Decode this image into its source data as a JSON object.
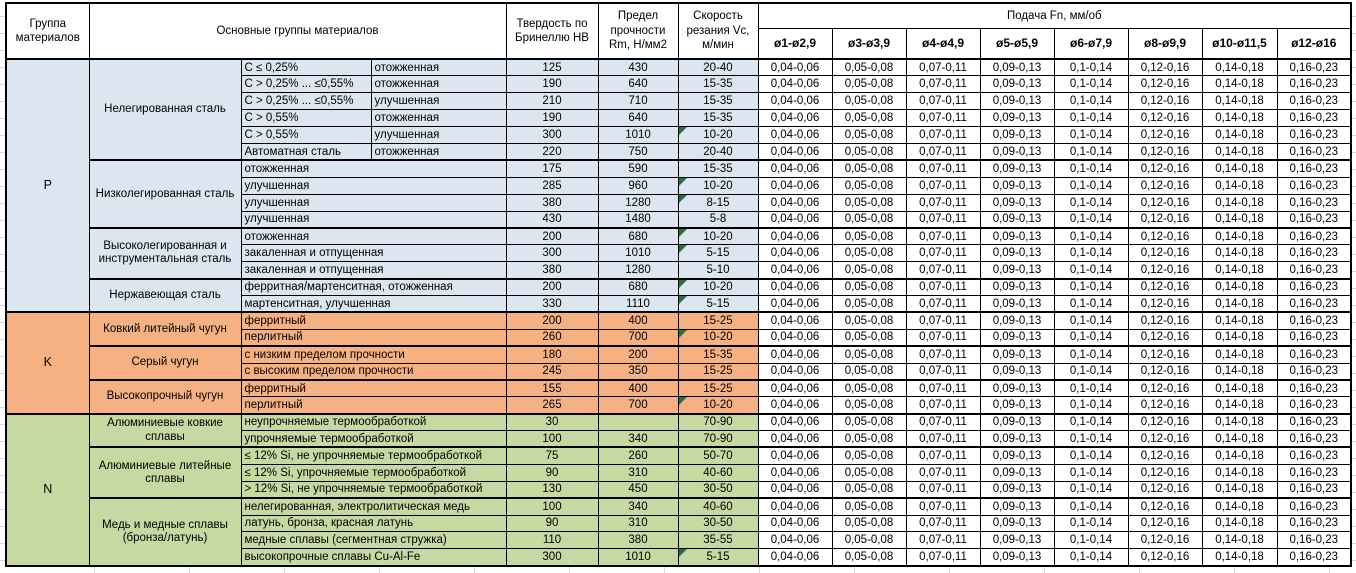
{
  "header": {
    "group_col": "Группа материалов",
    "main_groups_col": "Основные группы материалов",
    "hardness_col": "Твердость по Бринеллю HB",
    "strength_col": "Предел прочности Rm, Н/мм2",
    "speed_col": "Скорость резания Vc, м/мин",
    "feed_group": "Подача Fn, мм/об",
    "feed_cols": [
      "ø1-ø2,9",
      "ø3-ø3,9",
      "ø4-ø4,9",
      "ø5-ø5,9",
      "ø6-ø7,9",
      "ø8-ø9,9",
      "ø10-ø11,5",
      "ø12-ø16"
    ]
  },
  "feed_values": [
    "0,04-0,06",
    "0,05-0,08",
    "0,07-0,11",
    "0,09-0,13",
    "0,1-0,14",
    "0,12-0,16",
    "0,14-0,18",
    "0,16-0,23"
  ],
  "colors": {
    "steel": "#dce6f1",
    "cast_iron": "#f6b183",
    "nonferrous": "#c6d9a2",
    "marker": "#217346"
  },
  "groups": [
    {
      "code": "P",
      "color_key": "steel",
      "blocks": [
        {
          "name": "Нелегированная сталь",
          "rows": [
            {
              "sub": "C ≤ 0,25%",
              "state": "отожженная",
              "hb": "125",
              "rm": "430",
              "vc": "20-40",
              "flag": false
            },
            {
              "sub": "C > 0,25% ... ≤0,55%",
              "state": "отожженная",
              "hb": "190",
              "rm": "640",
              "vc": "15-35",
              "flag": false
            },
            {
              "sub": "C > 0,25% ... ≤0,55%",
              "state": "улучшенная",
              "hb": "210",
              "rm": "710",
              "vc": "15-35",
              "flag": false
            },
            {
              "sub": "C > 0,55%",
              "state": "отожженная",
              "hb": "190",
              "rm": "640",
              "vc": "15-35",
              "flag": false
            },
            {
              "sub": "C > 0,55%",
              "state": "улучшенная",
              "hb": "300",
              "rm": "1010",
              "vc": "10-20",
              "flag": true
            },
            {
              "sub": "Автоматная сталь",
              "state": "отожженная",
              "hb": "220",
              "rm": "750",
              "vc": "20-40",
              "flag": false
            }
          ]
        },
        {
          "name": "Низколегированная сталь",
          "rows": [
            {
              "desc": "отожженная",
              "hb": "175",
              "rm": "590",
              "vc": "15-35",
              "flag": false
            },
            {
              "desc": "улучшенная",
              "hb": "285",
              "rm": "960",
              "vc": "10-20",
              "flag": true
            },
            {
              "desc": "улучшенная",
              "hb": "380",
              "rm": "1280",
              "vc": "8-15",
              "flag": true
            },
            {
              "desc": "улучшенная",
              "hb": "430",
              "rm": "1480",
              "vc": "5-8",
              "flag": false
            }
          ]
        },
        {
          "name": "Высоколегированная и инструментальная сталь",
          "rows": [
            {
              "desc": "отожженная",
              "hb": "200",
              "rm": "680",
              "vc": "10-20",
              "flag": true
            },
            {
              "desc": "закаленная и отпущенная",
              "hb": "300",
              "rm": "1010",
              "vc": "5-15",
              "flag": true
            },
            {
              "desc": "закаленная и отпущенная",
              "hb": "380",
              "rm": "1280",
              "vc": "5-10",
              "flag": false
            }
          ]
        },
        {
          "name": "Нержавеющая сталь",
          "rows": [
            {
              "desc": "ферритная/мартенситная, отожженная",
              "hb": "200",
              "rm": "680",
              "vc": "10-20",
              "flag": true
            },
            {
              "desc": "мартенситная, улучшенная",
              "hb": "330",
              "rm": "1110",
              "vc": "5-15",
              "flag": true
            }
          ]
        }
      ]
    },
    {
      "code": "K",
      "color_key": "cast_iron",
      "blocks": [
        {
          "name": "Ковкий литейный чугун",
          "rows": [
            {
              "desc": "ферритный",
              "hb": "200",
              "rm": "400",
              "vc": "15-25",
              "flag": false
            },
            {
              "desc": "перлитный",
              "hb": "260",
              "rm": "700",
              "vc": "10-20",
              "flag": true
            }
          ]
        },
        {
          "name": "Серый чугун",
          "rows": [
            {
              "desc": "с низким пределом прочности",
              "hb": "180",
              "rm": "200",
              "vc": "15-35",
              "flag": false
            },
            {
              "desc": "с высоким пределом прочности",
              "hb": "245",
              "rm": "350",
              "vc": "15-25",
              "flag": false
            }
          ]
        },
        {
          "name": "Высокопрочный чугун",
          "rows": [
            {
              "desc": "ферритный",
              "hb": "155",
              "rm": "400",
              "vc": "15-25",
              "flag": false
            },
            {
              "desc": "перлитный",
              "hb": "265",
              "rm": "700",
              "vc": "10-20",
              "flag": true
            }
          ]
        }
      ]
    },
    {
      "code": "N",
      "color_key": "nonferrous",
      "blocks": [
        {
          "name": "Алюминиевые ковкие сплавы",
          "rows": [
            {
              "desc": "неупрочняемые термообработкой",
              "hb": "30",
              "rm": "",
              "vc": "70-90",
              "flag": false
            },
            {
              "desc": "упрочняемые термообработкой",
              "hb": "100",
              "rm": "340",
              "vc": "70-90",
              "flag": false
            }
          ]
        },
        {
          "name": "Алюминиевые литейные сплавы",
          "rows": [
            {
              "desc": "≤ 12% Si, не упрочняемые термообработкой",
              "hb": "75",
              "rm": "260",
              "vc": "50-70",
              "flag": false
            },
            {
              "desc": "≤ 12% Si, упрочняемые термообработкой",
              "hb": "90",
              "rm": "310",
              "vc": "40-60",
              "flag": false
            },
            {
              "desc": "> 12% Si, не упрочняемые термообработкой",
              "hb": "130",
              "rm": "450",
              "vc": "30-50",
              "flag": false
            }
          ]
        },
        {
          "name": "Медь и медные сплавы (бронза/латунь)",
          "rows": [
            {
              "desc": "нелегированная, электролитическая медь",
              "hb": "100",
              "rm": "340",
              "vc": "40-60",
              "flag": false
            },
            {
              "desc": "латунь, бронза, красная латунь",
              "hb": "90",
              "rm": "310",
              "vc": "30-50",
              "flag": false
            },
            {
              "desc": "медные сплавы (сегментная стружка)",
              "hb": "110",
              "rm": "380",
              "vc": "35-55",
              "flag": false
            },
            {
              "desc": "высокопрочные сплавы Cu-Al-Fe",
              "hb": "300",
              "rm": "1010",
              "vc": "5-15",
              "flag": true
            }
          ]
        }
      ]
    }
  ]
}
